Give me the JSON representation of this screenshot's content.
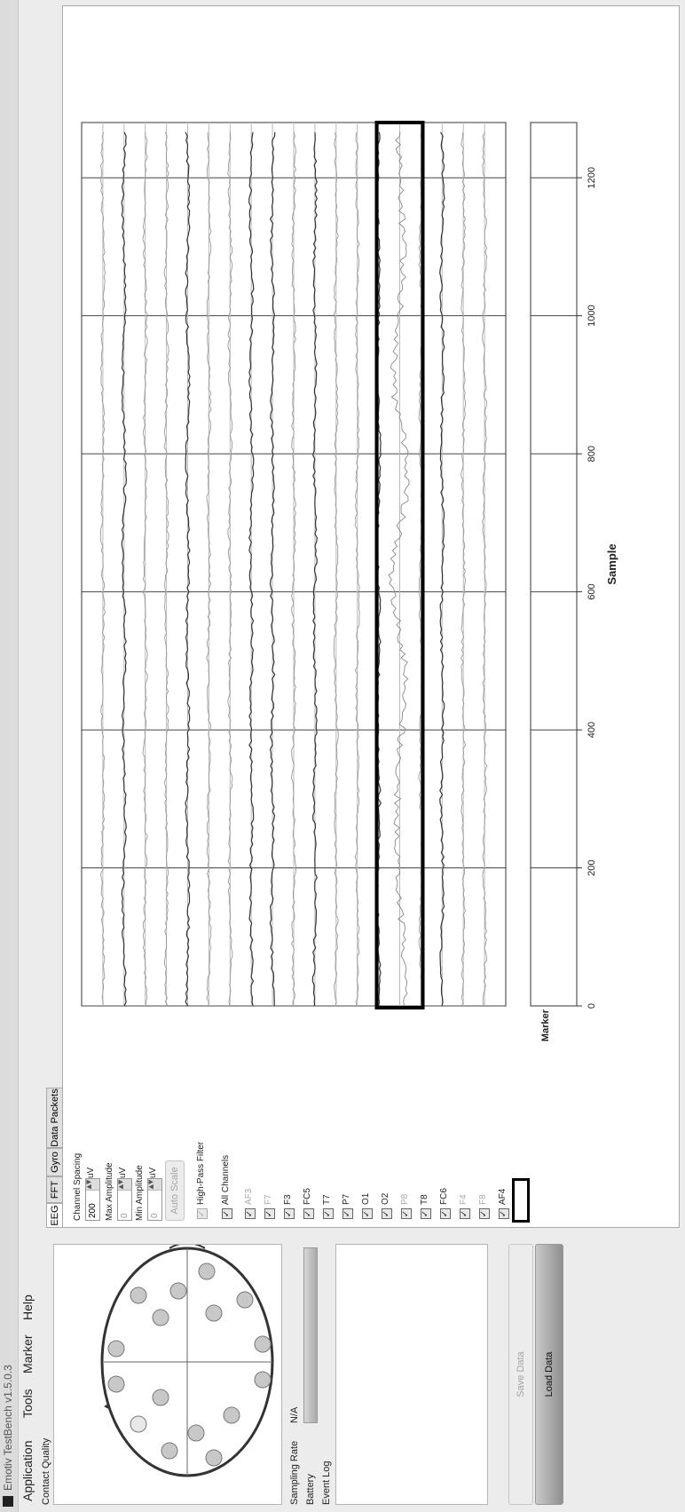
{
  "window": {
    "title": "Emotiv TestBench v1.5.0.3"
  },
  "menu": [
    "Application",
    "Tools",
    "Marker",
    "Help"
  ],
  "left_panel": {
    "contact_quality_label": "Contact Quality",
    "sampling_rate_label": "Sampling Rate",
    "sampling_rate_value": "N/A",
    "battery_label": "Battery",
    "event_log_label": "Event Log",
    "save_button": "Save Data",
    "load_button": "Load Data"
  },
  "tabs": [
    "EEG",
    "FFT",
    "Gyro",
    "Data Packets"
  ],
  "controls": {
    "channel_spacing_label": "Channel Spacing",
    "channel_spacing_value": "200",
    "channel_spacing_unit": "uV",
    "max_amplitude_label": "Max Amplitude",
    "max_amplitude_value": "0",
    "max_amplitude_unit": "uV",
    "min_amplitude_label": "Min Amplitude",
    "min_amplitude_value": "0",
    "min_amplitude_unit": "uV",
    "auto_scale_button": "Auto Scale",
    "high_pass_label": "High-Pass Filter",
    "all_channels_label": "All Channels"
  },
  "channels": [
    {
      "name": "AF3",
      "enabled": false
    },
    {
      "name": "F7",
      "enabled": false
    },
    {
      "name": "F3",
      "enabled": true
    },
    {
      "name": "FC5",
      "enabled": true
    },
    {
      "name": "T7",
      "enabled": true
    },
    {
      "name": "P7",
      "enabled": true
    },
    {
      "name": "O1",
      "enabled": true
    },
    {
      "name": "O2",
      "enabled": true
    },
    {
      "name": "P8",
      "enabled": false
    },
    {
      "name": "T8",
      "enabled": true
    },
    {
      "name": "FC6",
      "enabled": true
    },
    {
      "name": "F4",
      "enabled": false
    },
    {
      "name": "F8",
      "enabled": false
    },
    {
      "name": "AF4",
      "enabled": true
    }
  ],
  "chart_data": {
    "type": "line",
    "xlabel": "Sample",
    "xlim": [
      0,
      1280
    ],
    "xticks": [
      0,
      200,
      400,
      600,
      800,
      1000,
      1200
    ],
    "marker_label": "Marker",
    "highlighted_channel": "F4",
    "trace_count": 19
  }
}
